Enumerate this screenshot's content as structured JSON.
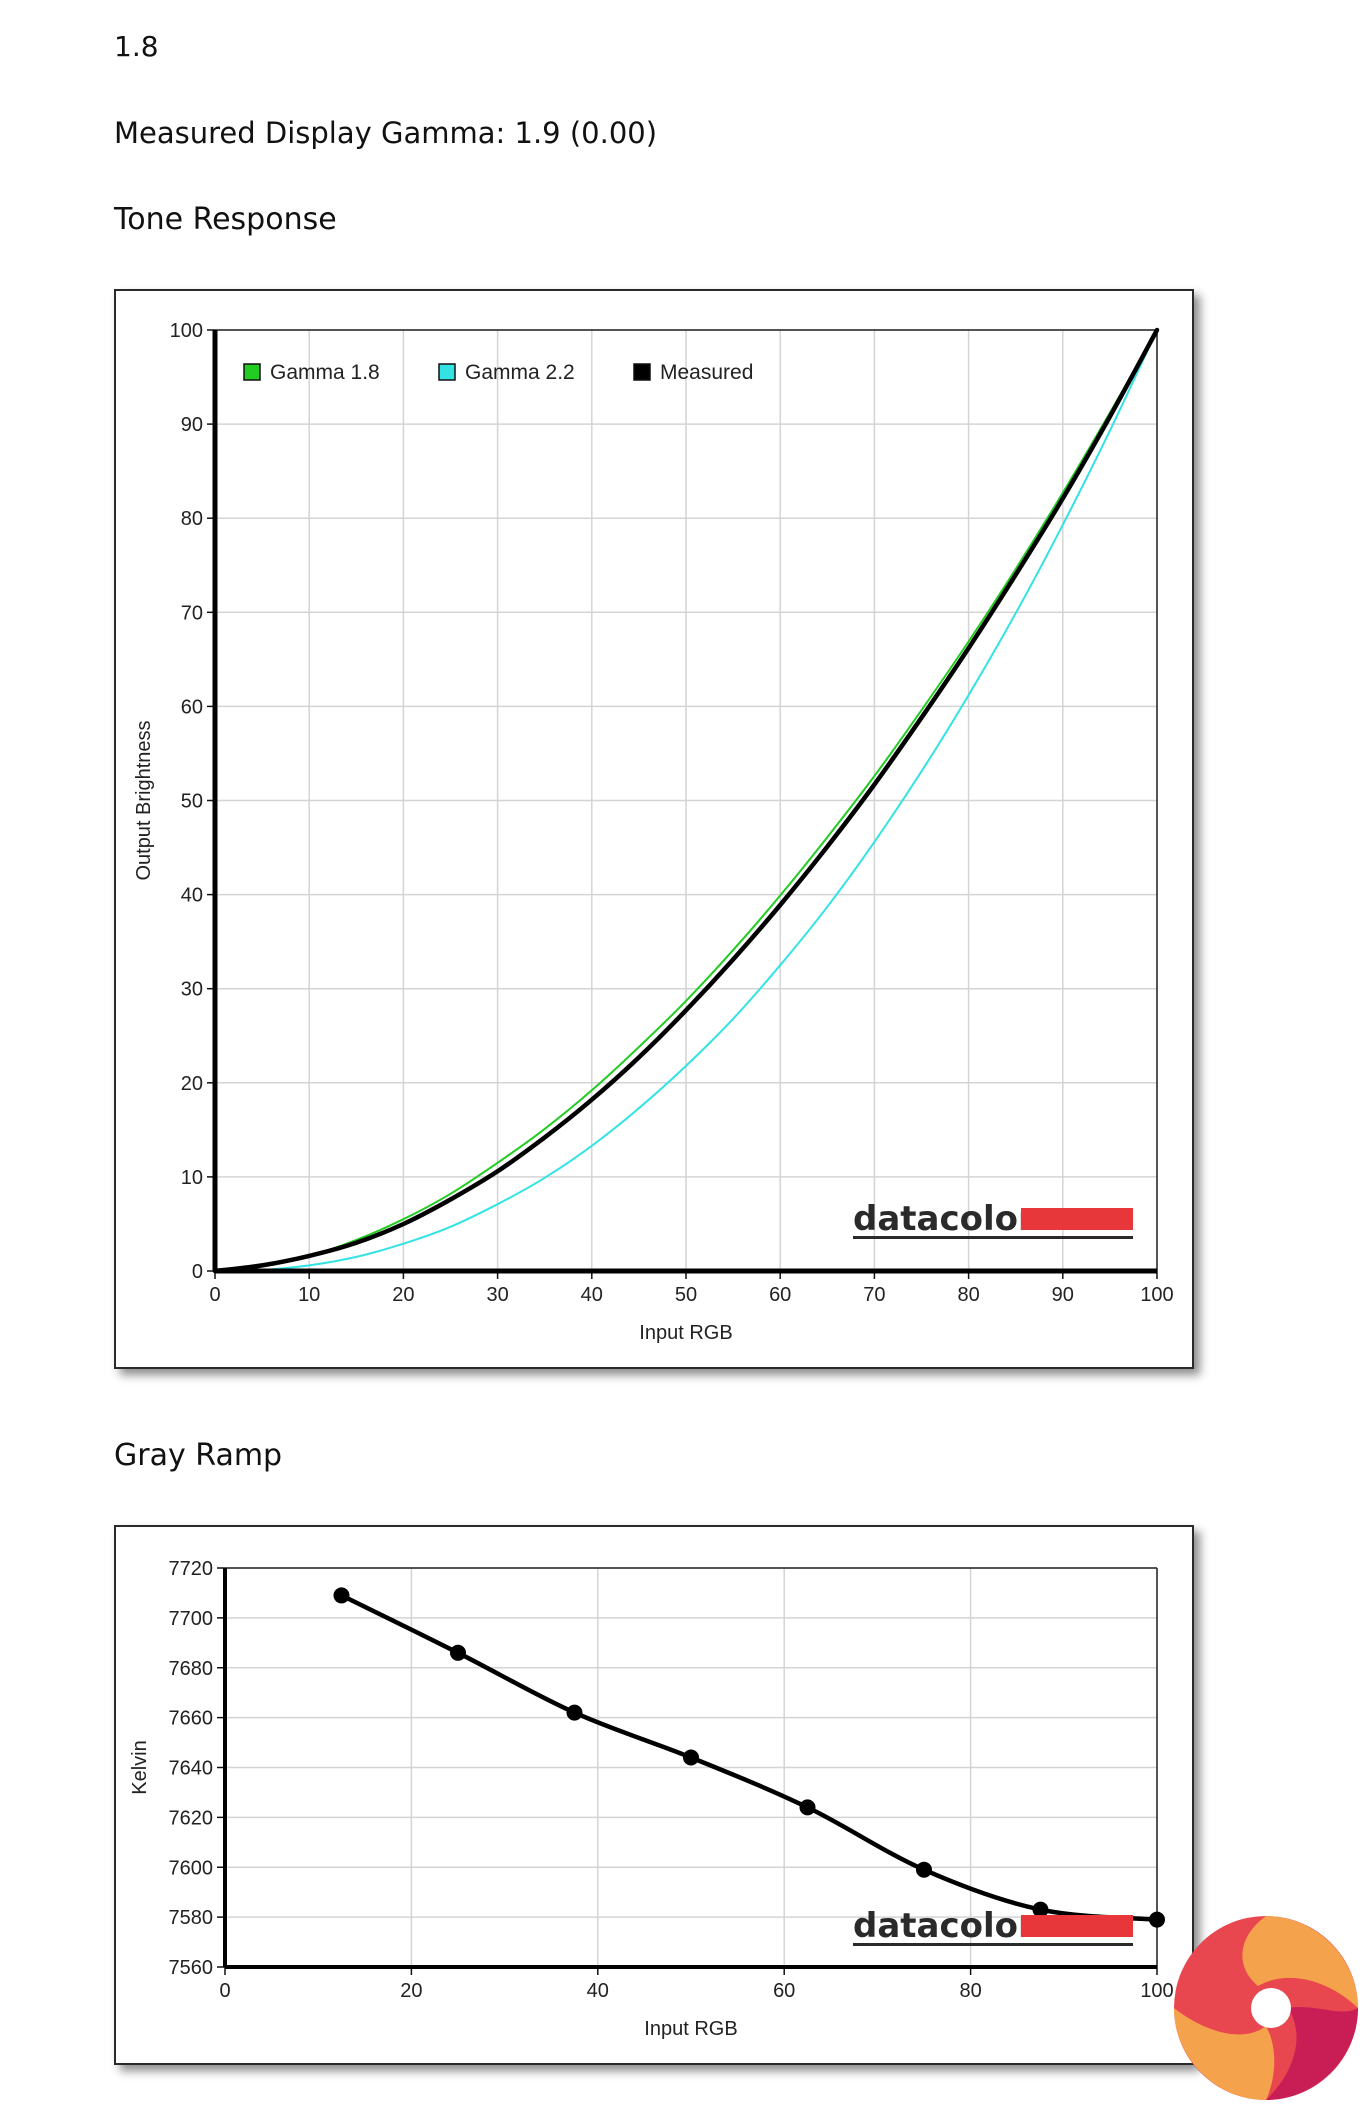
{
  "page": {
    "gamma_target": "1.8",
    "measured_gamma": "Measured Display Gamma: 1.9 (0.00)",
    "tone_heading": "Tone Response",
    "gray_heading": "Gray Ramp"
  },
  "brand": {
    "name": "datacolor",
    "accent": "#e8373a"
  },
  "logo": {
    "icon": "swirl-logo-icon",
    "colors": [
      "#f4a24b",
      "#e8474f",
      "#c81e55"
    ]
  },
  "chart_data": [
    {
      "type": "line",
      "xlabel": "Input RGB",
      "ylabel": "Output Brightness",
      "xlim": [
        0,
        100
      ],
      "ylim": [
        0,
        100
      ],
      "x_ticks": [
        0,
        10,
        20,
        30,
        40,
        50,
        60,
        70,
        80,
        90,
        100
      ],
      "y_ticks": [
        0,
        10,
        20,
        30,
        40,
        50,
        60,
        70,
        80,
        90,
        100
      ],
      "grid": true,
      "legend": "top-left",
      "x": [
        0,
        5,
        10,
        15,
        20,
        25,
        30,
        35,
        40,
        45,
        50,
        55,
        60,
        65,
        70,
        75,
        80,
        85,
        90,
        95,
        100
      ],
      "series": [
        {
          "name": "Gamma 1.8",
          "color": "#22cc22",
          "width": 2,
          "values": [
            0,
            0.5,
            1.6,
            3.3,
            5.5,
            8.2,
            11.5,
            15.1,
            19.2,
            23.8,
            28.7,
            34.1,
            39.9,
            46.1,
            52.6,
            59.6,
            66.9,
            74.6,
            82.7,
            91.2,
            100
          ]
        },
        {
          "name": "Gamma 2.2",
          "color": "#33e3e3",
          "width": 2,
          "values": [
            0,
            0.1,
            0.6,
            1.5,
            2.9,
            4.7,
            7.1,
            9.9,
            13.3,
            17.3,
            21.8,
            26.8,
            32.5,
            38.7,
            45.6,
            53.1,
            61.2,
            69.9,
            79.3,
            89.3,
            100
          ]
        },
        {
          "name": "Measured",
          "color": "#000000",
          "width": 4.5,
          "values": [
            0,
            0.6,
            1.6,
            3.0,
            5.0,
            7.6,
            10.6,
            14.2,
            18.2,
            22.7,
            27.7,
            33.1,
            38.9,
            45.1,
            51.7,
            58.8,
            66.2,
            74.0,
            82.1,
            90.8,
            100
          ]
        }
      ]
    },
    {
      "type": "line",
      "xlabel": "Input RGB",
      "ylabel": "Kelvin",
      "xlim": [
        0,
        100
      ],
      "ylim": [
        7560,
        7720
      ],
      "x_ticks": [
        0,
        20,
        40,
        60,
        80,
        100
      ],
      "y_ticks": [
        7560,
        7580,
        7600,
        7620,
        7640,
        7660,
        7680,
        7700,
        7720
      ],
      "grid": true,
      "series": [
        {
          "color": "#000000",
          "x": [
            12.5,
            25,
            37.5,
            50,
            62.5,
            75,
            87.5,
            100
          ],
          "values": [
            7709,
            7686,
            7662,
            7644,
            7624,
            7599,
            7583,
            7579
          ]
        }
      ]
    }
  ]
}
